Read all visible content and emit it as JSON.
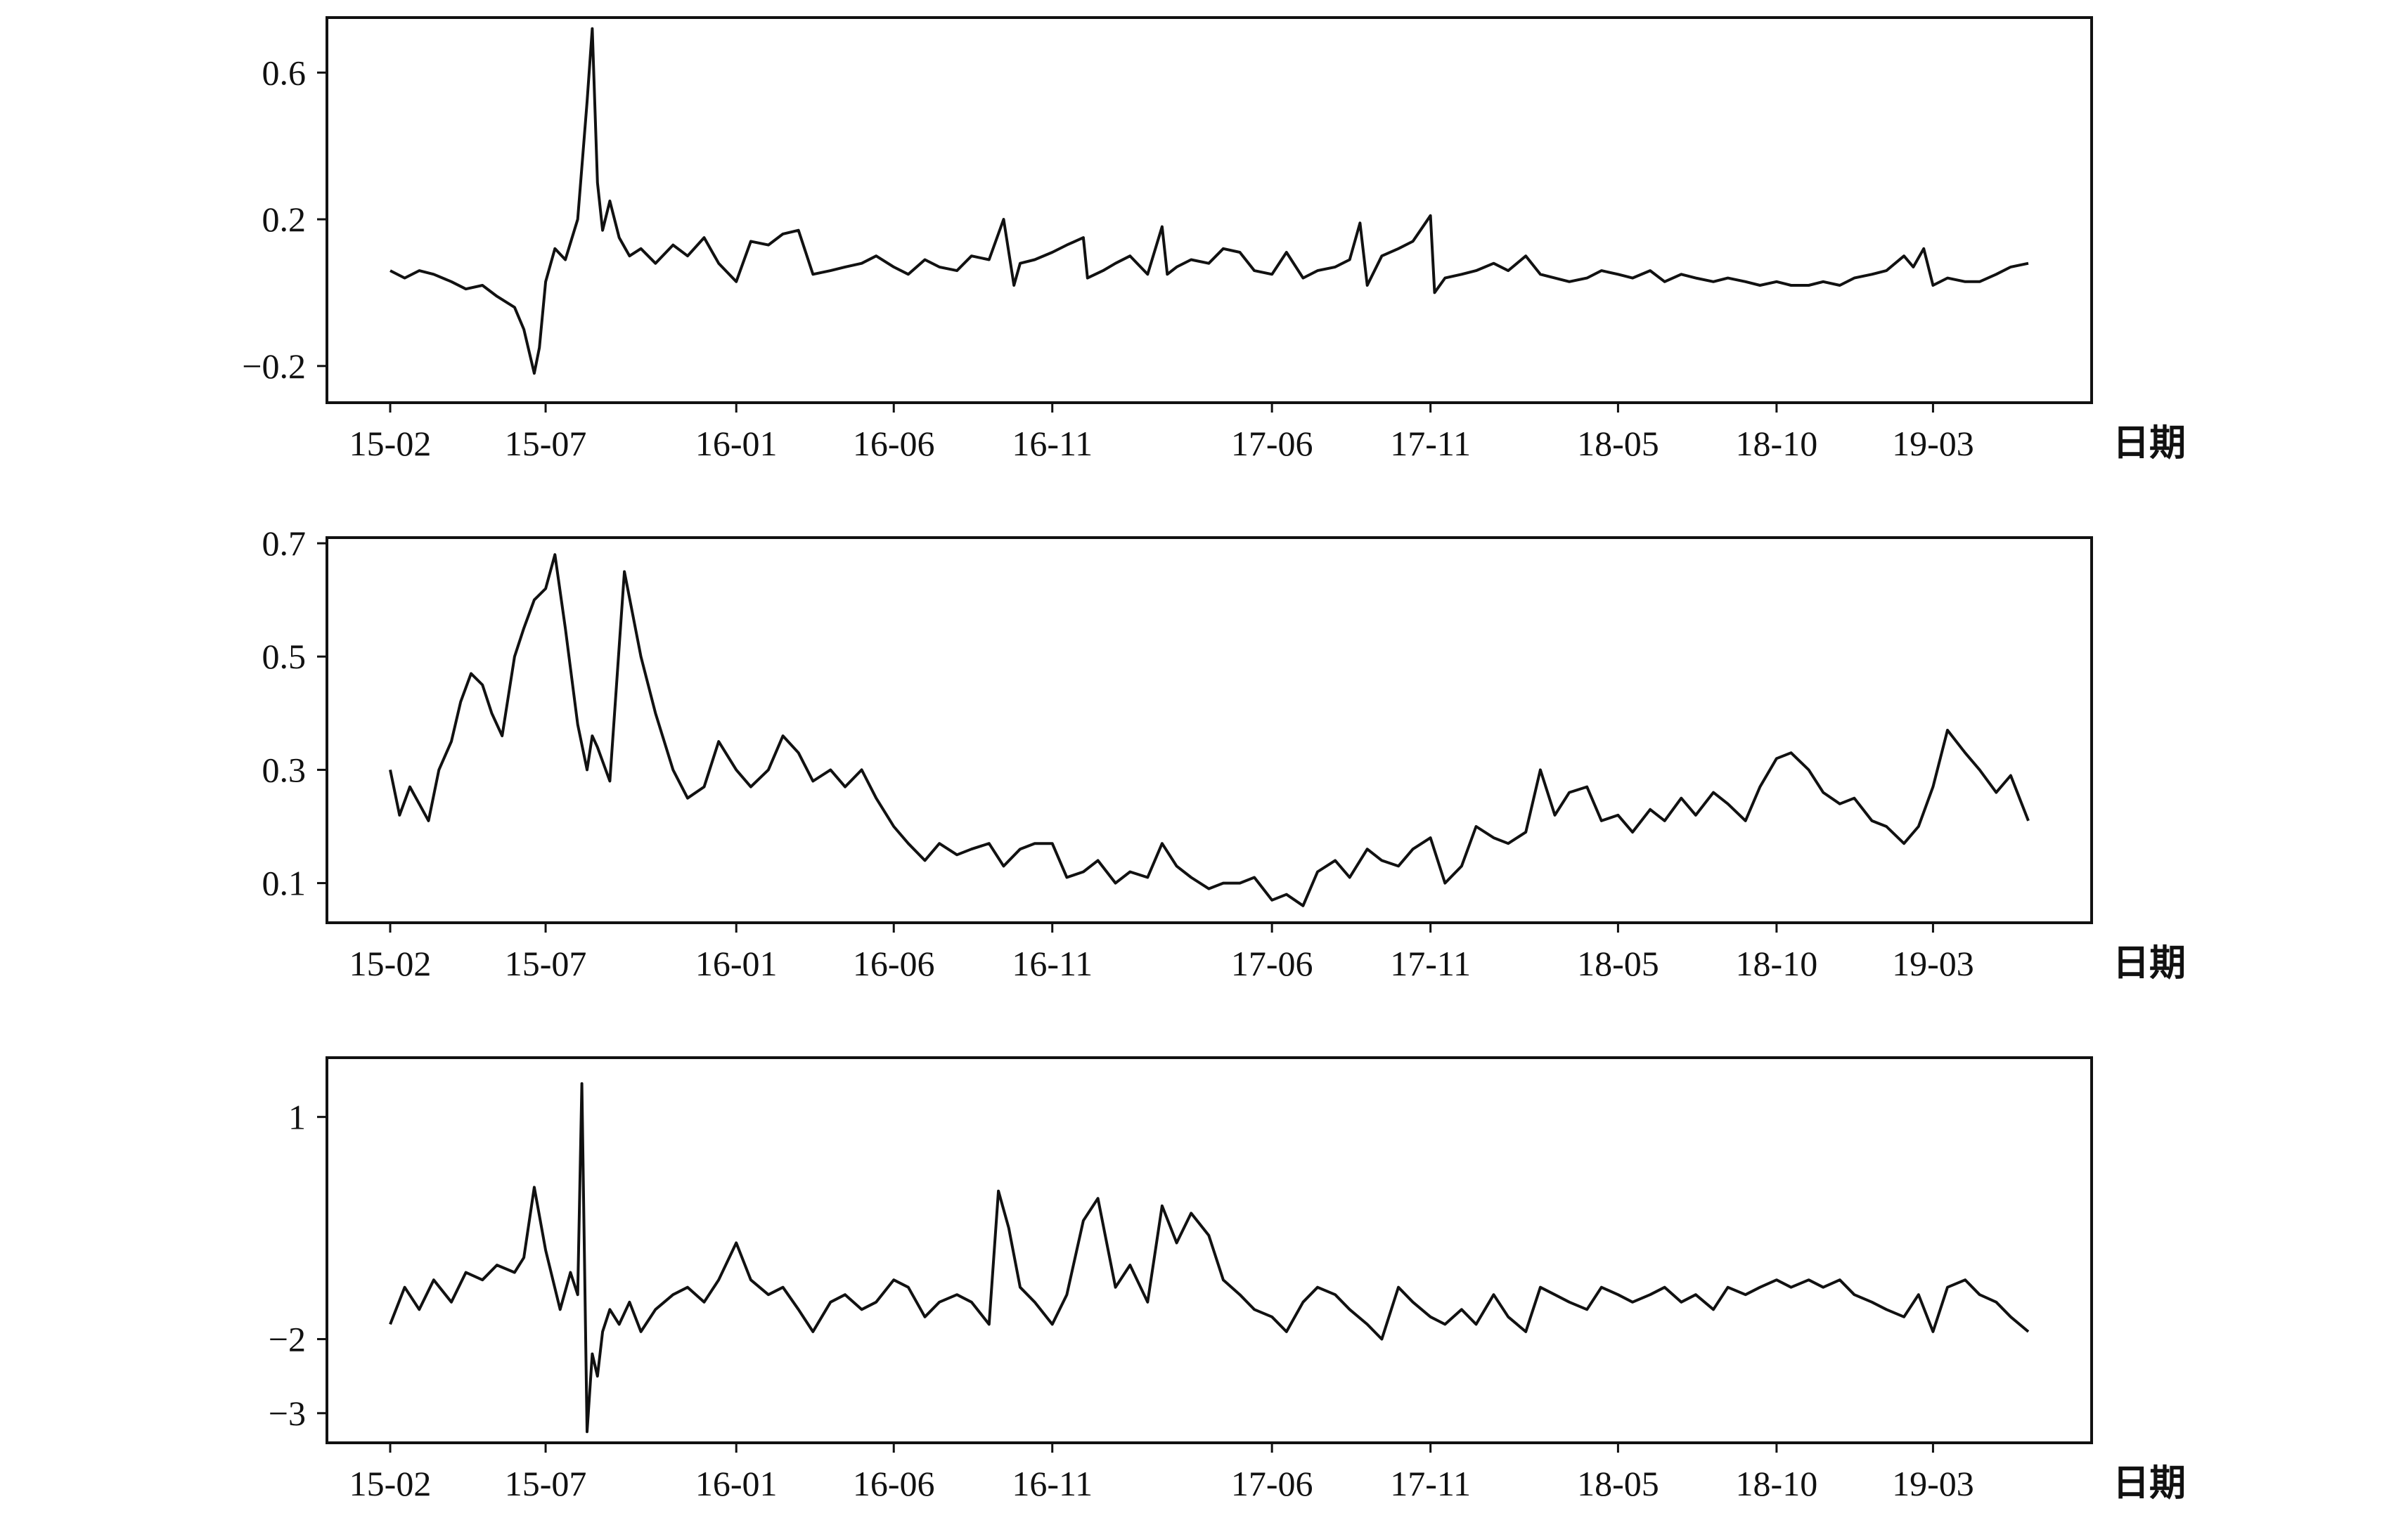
{
  "chart_data": [
    {
      "type": "line",
      "title": "",
      "xlabel": "日期",
      "ylabel": "",
      "grid": false,
      "x_ticks": [
        "15-02",
        "15-07",
        "16-01",
        "16-06",
        "16-11",
        "17-06",
        "17-11",
        "18-05",
        "18-10",
        "19-03"
      ],
      "xlim": [
        "2015-02",
        "2019-06"
      ],
      "y_ticks": [
        0.6,
        0.2,
        -0.2
      ],
      "y_tick_labels": [
        "0.6",
        "0.2",
        "−0.2"
      ],
      "ylim": [
        -0.3,
        0.75
      ],
      "series": [
        {
          "x": [
            "2015-02-01",
            "2015-02-15",
            "2015-03-01",
            "2015-03-15",
            "2015-04-01",
            "2015-04-15",
            "2015-05-01",
            "2015-05-15",
            "2015-06-01",
            "2015-06-10",
            "2015-06-20",
            "2015-06-25",
            "2015-07-01",
            "2015-07-10",
            "2015-07-20",
            "2015-08-01",
            "2015-08-10",
            "2015-08-15",
            "2015-08-20",
            "2015-08-25",
            "2015-09-01",
            "2015-09-10",
            "2015-09-20",
            "2015-10-01",
            "2015-10-15",
            "2015-11-01",
            "2015-11-15",
            "2015-12-01",
            "2015-12-15",
            "2016-01-01",
            "2016-01-15",
            "2016-02-01",
            "2016-02-15",
            "2016-03-01",
            "2016-03-15",
            "2016-04-01",
            "2016-04-15",
            "2016-05-01",
            "2016-05-15",
            "2016-06-01",
            "2016-06-15",
            "2016-07-01",
            "2016-07-15",
            "2016-08-01",
            "2016-08-15",
            "2016-09-01",
            "2016-09-15",
            "2016-09-25",
            "2016-10-01",
            "2016-10-15",
            "2016-11-01",
            "2016-11-15",
            "2016-12-01",
            "2016-12-05",
            "2016-12-20",
            "2017-01-01",
            "2017-01-15",
            "2017-02-01",
            "2017-02-15",
            "2017-02-20",
            "2017-03-01",
            "2017-03-15",
            "2017-04-01",
            "2017-04-15",
            "2017-05-01",
            "2017-05-15",
            "2017-06-01",
            "2017-06-15",
            "2017-07-01",
            "2017-07-15",
            "2017-08-01",
            "2017-08-15",
            "2017-08-25",
            "2017-09-01",
            "2017-09-15",
            "2017-10-01",
            "2017-10-15",
            "2017-11-01",
            "2017-11-05",
            "2017-11-15",
            "2017-12-01",
            "2017-12-15",
            "2018-01-01",
            "2018-01-15",
            "2018-02-01",
            "2018-02-15",
            "2018-03-01",
            "2018-03-15",
            "2018-04-01",
            "2018-04-15",
            "2018-05-01",
            "2018-05-15",
            "2018-06-01",
            "2018-06-15",
            "2018-07-01",
            "2018-07-15",
            "2018-08-01",
            "2018-08-15",
            "2018-09-01",
            "2018-09-15",
            "2018-10-01",
            "2018-10-15",
            "2018-11-01",
            "2018-11-15",
            "2018-12-01",
            "2018-12-15",
            "2019-01-01",
            "2019-01-15",
            "2019-02-01",
            "2019-02-10",
            "2019-02-20",
            "2019-03-01",
            "2019-03-15",
            "2019-04-01",
            "2019-04-15",
            "2019-05-01",
            "2019-05-15",
            "2019-06-01"
          ],
          "y": [
            0.06,
            0.04,
            0.06,
            0.05,
            0.03,
            0.01,
            0.02,
            -0.01,
            -0.04,
            -0.1,
            -0.22,
            -0.15,
            0.03,
            0.12,
            0.09,
            0.2,
            0.52,
            0.72,
            0.3,
            0.17,
            0.25,
            0.15,
            0.1,
            0.12,
            0.08,
            0.13,
            0.1,
            0.15,
            0.08,
            0.03,
            0.14,
            0.13,
            0.16,
            0.17,
            0.05,
            0.06,
            0.07,
            0.08,
            0.1,
            0.07,
            0.05,
            0.09,
            0.07,
            0.06,
            0.1,
            0.09,
            0.2,
            0.02,
            0.08,
            0.09,
            0.11,
            0.13,
            0.15,
            0.04,
            0.06,
            0.08,
            0.1,
            0.05,
            0.18,
            0.05,
            0.07,
            0.09,
            0.08,
            0.12,
            0.11,
            0.06,
            0.05,
            0.11,
            0.04,
            0.06,
            0.07,
            0.09,
            0.19,
            0.02,
            0.1,
            0.12,
            0.14,
            0.21,
            0.0,
            0.04,
            0.05,
            0.06,
            0.08,
            0.06,
            0.1,
            0.05,
            0.04,
            0.03,
            0.04,
            0.06,
            0.05,
            0.04,
            0.06,
            0.03,
            0.05,
            0.04,
            0.03,
            0.04,
            0.03,
            0.02,
            0.03,
            0.02,
            0.02,
            0.03,
            0.02,
            0.04,
            0.05,
            0.06,
            0.1,
            0.07,
            0.12,
            0.02,
            0.04,
            0.03,
            0.03,
            0.05,
            0.07,
            0.08
          ]
        }
      ]
    },
    {
      "type": "line",
      "title": "",
      "xlabel": "日期",
      "ylabel": "",
      "grid": false,
      "x_ticks": [
        "15-02",
        "15-07",
        "16-01",
        "16-06",
        "16-11",
        "17-06",
        "17-11",
        "18-05",
        "18-10",
        "19-03"
      ],
      "xlim": [
        "2015-02",
        "2019-06"
      ],
      "y_ticks": [
        0.7,
        0.5,
        0.3,
        0.1
      ],
      "y_tick_labels": [
        "0.7",
        "0.5",
        "0.3",
        "0.1"
      ],
      "ylim": [
        0.03,
        0.71
      ],
      "series": [
        {
          "x": [
            "2015-02-01",
            "2015-02-10",
            "2015-02-20",
            "2015-03-01",
            "2015-03-10",
            "2015-03-20",
            "2015-04-01",
            "2015-04-10",
            "2015-04-20",
            "2015-05-01",
            "2015-05-10",
            "2015-05-20",
            "2015-06-01",
            "2015-06-10",
            "2015-06-20",
            "2015-07-01",
            "2015-07-10",
            "2015-07-20",
            "2015-08-01",
            "2015-08-10",
            "2015-08-15",
            "2015-08-20",
            "2015-09-01",
            "2015-09-15",
            "2015-10-01",
            "2015-10-15",
            "2015-11-01",
            "2015-11-15",
            "2015-12-01",
            "2015-12-15",
            "2016-01-01",
            "2016-01-15",
            "2016-02-01",
            "2016-02-15",
            "2016-03-01",
            "2016-03-15",
            "2016-04-01",
            "2016-04-15",
            "2016-05-01",
            "2016-05-15",
            "2016-06-01",
            "2016-06-15",
            "2016-07-01",
            "2016-07-15",
            "2016-08-01",
            "2016-08-15",
            "2016-09-01",
            "2016-09-15",
            "2016-10-01",
            "2016-10-15",
            "2016-11-01",
            "2016-11-15",
            "2016-12-01",
            "2016-12-15",
            "2017-01-01",
            "2017-01-15",
            "2017-02-01",
            "2017-02-15",
            "2017-03-01",
            "2017-03-15",
            "2017-04-01",
            "2017-04-15",
            "2017-05-01",
            "2017-05-15",
            "2017-06-01",
            "2017-06-15",
            "2017-07-01",
            "2017-07-15",
            "2017-08-01",
            "2017-08-15",
            "2017-09-01",
            "2017-09-15",
            "2017-10-01",
            "2017-10-15",
            "2017-11-01",
            "2017-11-15",
            "2017-12-01",
            "2017-12-15",
            "2018-01-01",
            "2018-01-15",
            "2018-02-01",
            "2018-02-15",
            "2018-03-01",
            "2018-03-15",
            "2018-04-01",
            "2018-04-15",
            "2018-05-01",
            "2018-05-15",
            "2018-06-01",
            "2018-06-15",
            "2018-07-01",
            "2018-07-15",
            "2018-08-01",
            "2018-08-15",
            "2018-09-01",
            "2018-09-15",
            "2018-10-01",
            "2018-10-15",
            "2018-11-01",
            "2018-11-15",
            "2018-12-01",
            "2018-12-15",
            "2019-01-01",
            "2019-01-15",
            "2019-02-01",
            "2019-02-15",
            "2019-03-01",
            "2019-03-15",
            "2019-04-01",
            "2019-04-15",
            "2019-05-01",
            "2019-05-15",
            "2019-06-01"
          ],
          "y": [
            0.3,
            0.22,
            0.27,
            0.24,
            0.21,
            0.3,
            0.35,
            0.42,
            0.47,
            0.45,
            0.4,
            0.36,
            0.5,
            0.55,
            0.6,
            0.62,
            0.68,
            0.55,
            0.38,
            0.3,
            0.36,
            0.34,
            0.28,
            0.65,
            0.5,
            0.4,
            0.3,
            0.25,
            0.27,
            0.35,
            0.3,
            0.27,
            0.3,
            0.36,
            0.33,
            0.28,
            0.3,
            0.27,
            0.3,
            0.25,
            0.2,
            0.17,
            0.14,
            0.17,
            0.15,
            0.16,
            0.17,
            0.13,
            0.16,
            0.17,
            0.17,
            0.11,
            0.12,
            0.14,
            0.1,
            0.12,
            0.11,
            0.17,
            0.13,
            0.11,
            0.09,
            0.1,
            0.1,
            0.11,
            0.07,
            0.08,
            0.06,
            0.12,
            0.14,
            0.11,
            0.16,
            0.14,
            0.13,
            0.16,
            0.18,
            0.1,
            0.13,
            0.2,
            0.18,
            0.17,
            0.19,
            0.3,
            0.22,
            0.26,
            0.27,
            0.21,
            0.22,
            0.19,
            0.23,
            0.21,
            0.25,
            0.22,
            0.26,
            0.24,
            0.21,
            0.27,
            0.32,
            0.33,
            0.3,
            0.26,
            0.24,
            0.25,
            0.21,
            0.2,
            0.17,
            0.2,
            0.27,
            0.37,
            0.33,
            0.3,
            0.26,
            0.29,
            0.21
          ]
        }
      ]
    },
    {
      "type": "line",
      "title": "",
      "xlabel": "日期",
      "ylabel": "",
      "grid": false,
      "x_ticks": [
        "15-02",
        "15-07",
        "16-01",
        "16-06",
        "16-11",
        "17-06",
        "17-11",
        "18-05",
        "18-10",
        "19-03"
      ],
      "xlim": [
        "2015-02",
        "2019-06"
      ],
      "y_ticks": [
        1,
        -2,
        -3
      ],
      "y_tick_labels": [
        "1",
        "−2",
        "−3"
      ],
      "ylim": [
        -3.4,
        1.8
      ],
      "series": [
        {
          "x": [
            "2015-02-01",
            "2015-02-15",
            "2015-03-01",
            "2015-03-15",
            "2015-04-01",
            "2015-04-15",
            "2015-05-01",
            "2015-05-15",
            "2015-06-01",
            "2015-06-10",
            "2015-06-20",
            "2015-07-01",
            "2015-07-15",
            "2015-07-25",
            "2015-08-01",
            "2015-08-05",
            "2015-08-10",
            "2015-08-15",
            "2015-08-20",
            "2015-08-25",
            "2015-09-01",
            "2015-09-10",
            "2015-09-20",
            "2015-10-01",
            "2015-10-15",
            "2015-11-01",
            "2015-11-15",
            "2015-12-01",
            "2015-12-15",
            "2016-01-01",
            "2016-01-15",
            "2016-02-01",
            "2016-02-15",
            "2016-03-01",
            "2016-03-15",
            "2016-04-01",
            "2016-04-15",
            "2016-05-01",
            "2016-05-15",
            "2016-06-01",
            "2016-06-15",
            "2016-07-01",
            "2016-07-15",
            "2016-08-01",
            "2016-08-15",
            "2016-09-01",
            "2016-09-10",
            "2016-09-20",
            "2016-10-01",
            "2016-10-15",
            "2016-11-01",
            "2016-11-15",
            "2016-12-01",
            "2016-12-15",
            "2017-01-01",
            "2017-01-15",
            "2017-02-01",
            "2017-02-15",
            "2017-03-01",
            "2017-03-15",
            "2017-04-01",
            "2017-04-15",
            "2017-05-01",
            "2017-05-15",
            "2017-06-01",
            "2017-06-15",
            "2017-07-01",
            "2017-07-15",
            "2017-08-01",
            "2017-08-15",
            "2017-09-01",
            "2017-09-15",
            "2017-10-01",
            "2017-10-15",
            "2017-11-01",
            "2017-11-15",
            "2017-12-01",
            "2017-12-15",
            "2018-01-01",
            "2018-01-15",
            "2018-02-01",
            "2018-02-15",
            "2018-03-01",
            "2018-03-15",
            "2018-04-01",
            "2018-04-15",
            "2018-05-01",
            "2018-05-15",
            "2018-06-01",
            "2018-06-15",
            "2018-07-01",
            "2018-07-15",
            "2018-08-01",
            "2018-08-15",
            "2018-09-01",
            "2018-09-15",
            "2018-10-01",
            "2018-10-15",
            "2018-11-01",
            "2018-11-15",
            "2018-12-01",
            "2018-12-15",
            "2019-01-01",
            "2019-01-15",
            "2019-02-01",
            "2019-02-15",
            "2019-03-01",
            "2019-03-15",
            "2019-04-01",
            "2019-04-15",
            "2019-05-01",
            "2019-05-15",
            "2019-06-01"
          ],
          "y": [
            -1.8,
            -1.3,
            -1.6,
            -1.2,
            -1.5,
            -1.1,
            -1.2,
            -1.0,
            -1.1,
            -0.9,
            0.05,
            -0.8,
            -1.6,
            -1.1,
            -1.4,
            1.45,
            -3.25,
            -2.2,
            -2.5,
            -1.9,
            -1.6,
            -1.8,
            -1.5,
            -1.9,
            -1.6,
            -1.4,
            -1.3,
            -1.5,
            -1.2,
            -0.7,
            -1.2,
            -1.4,
            -1.3,
            -1.6,
            -1.9,
            -1.5,
            -1.4,
            -1.6,
            -1.5,
            -1.2,
            -1.3,
            -1.7,
            -1.5,
            -1.4,
            -1.5,
            -1.8,
            0.0,
            -0.5,
            -1.3,
            -1.5,
            -1.8,
            -1.4,
            -0.4,
            -0.1,
            -1.3,
            -1.0,
            -1.5,
            -0.2,
            -0.7,
            -0.3,
            -0.6,
            -1.2,
            -1.4,
            -1.6,
            -1.7,
            -1.9,
            -1.5,
            -1.3,
            -1.4,
            -1.6,
            -1.8,
            -2.0,
            -1.3,
            -1.5,
            -1.7,
            -1.8,
            -1.6,
            -1.8,
            -1.4,
            -1.7,
            -1.9,
            -1.3,
            -1.4,
            -1.5,
            -1.6,
            -1.3,
            -1.4,
            -1.5,
            -1.4,
            -1.3,
            -1.5,
            -1.4,
            -1.6,
            -1.3,
            -1.4,
            -1.3,
            -1.2,
            -1.3,
            -1.2,
            -1.3,
            -1.2,
            -1.4,
            -1.5,
            -1.6,
            -1.7,
            -1.4,
            -1.9,
            -1.3,
            -1.2,
            -1.4,
            -1.5,
            -1.7,
            -1.9
          ]
        }
      ]
    }
  ]
}
